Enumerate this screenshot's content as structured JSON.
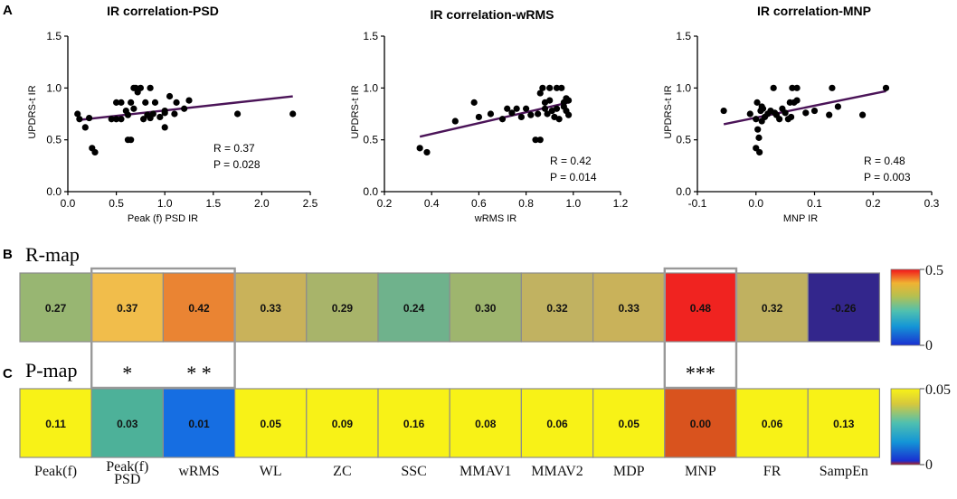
{
  "chart_data": [
    {
      "type": "scatter",
      "panel": "A",
      "title": "IR correlation-PSD",
      "xlabel": "Peak (f) PSD  IR",
      "ylabel": "UPDRS-t IR",
      "xlim": [
        0,
        2.5
      ],
      "ylim": [
        0,
        1.5
      ],
      "xticks": [
        "0.0",
        "0.5",
        "1.0",
        "1.5",
        "2.0",
        "2.5"
      ],
      "yticks": [
        "0.0",
        "0.5",
        "1.0",
        "1.5"
      ],
      "x": [
        0.1,
        0.12,
        0.18,
        0.22,
        0.25,
        0.28,
        0.45,
        0.5,
        0.5,
        0.55,
        0.55,
        0.6,
        0.62,
        0.62,
        0.65,
        0.65,
        0.68,
        0.68,
        0.7,
        0.72,
        0.75,
        0.78,
        0.8,
        0.82,
        0.85,
        0.85,
        0.88,
        0.9,
        0.95,
        1.0,
        1.0,
        1.0,
        1.05,
        1.1,
        1.12,
        1.2,
        1.25,
        1.75,
        2.32
      ],
      "y": [
        0.75,
        0.7,
        0.62,
        0.71,
        0.42,
        0.38,
        0.7,
        0.7,
        0.86,
        0.86,
        0.7,
        0.78,
        0.74,
        0.5,
        0.5,
        0.86,
        0.8,
        1.0,
        1.0,
        0.96,
        1.0,
        0.7,
        0.86,
        0.74,
        1.0,
        0.71,
        0.75,
        0.86,
        0.72,
        0.78,
        0.76,
        0.62,
        0.92,
        0.75,
        0.86,
        0.8,
        0.88,
        0.75,
        0.75
      ],
      "fit": {
        "x": [
          0.1,
          2.32
        ],
        "y": [
          0.69,
          0.92
        ]
      },
      "stats": {
        "r": "R = 0.37",
        "p": "P = 0.028"
      }
    },
    {
      "type": "scatter",
      "title": "IR correlation-wRMS",
      "xlabel": "wRMS  IR",
      "ylabel": "UPDRS-t  IR",
      "xlim": [
        0.2,
        1.2
      ],
      "ylim": [
        0,
        1.5
      ],
      "xticks": [
        "0.2",
        "0.4",
        "0.6",
        "0.8",
        "1.0",
        "1.2"
      ],
      "yticks": [
        "0.0",
        "0.5",
        "1.0",
        "1.5"
      ],
      "x": [
        0.35,
        0.38,
        0.5,
        0.58,
        0.6,
        0.65,
        0.7,
        0.72,
        0.74,
        0.76,
        0.78,
        0.8,
        0.82,
        0.84,
        0.85,
        0.86,
        0.86,
        0.87,
        0.88,
        0.88,
        0.89,
        0.9,
        0.9,
        0.91,
        0.92,
        0.93,
        0.93,
        0.94,
        0.95,
        0.96,
        0.96,
        0.97,
        0.97,
        0.98,
        0.98
      ],
      "y": [
        0.42,
        0.38,
        0.68,
        0.86,
        0.72,
        0.75,
        0.7,
        0.8,
        0.76,
        0.8,
        0.72,
        0.8,
        0.74,
        0.5,
        0.75,
        0.95,
        0.5,
        1.0,
        0.8,
        0.86,
        0.75,
        1.0,
        0.88,
        0.78,
        0.72,
        1.0,
        0.8,
        0.7,
        1.0,
        0.82,
        0.86,
        0.9,
        0.78,
        0.74,
        0.88
      ],
      "fit": {
        "x": [
          0.35,
          0.98
        ],
        "y": [
          0.53,
          0.86
        ]
      },
      "stats": {
        "r": "R = 0.42",
        "p": "P = 0.014"
      }
    },
    {
      "type": "scatter",
      "title": "IR correlation-MNP",
      "xlabel": "MNP IR",
      "ylabel": "UPDRS-t IR",
      "xlim": [
        -0.1,
        0.3
      ],
      "ylim": [
        0,
        1.5
      ],
      "xticks": [
        "-0.1",
        "0.0",
        "0.1",
        "0.2",
        "0.3"
      ],
      "yticks": [
        "0.0",
        "0.5",
        "1.0",
        "1.5"
      ],
      "x": [
        -0.055,
        -0.01,
        0.0,
        0.0,
        0.002,
        0.003,
        0.005,
        0.006,
        0.008,
        0.01,
        0.01,
        0.012,
        0.015,
        0.02,
        0.025,
        0.03,
        0.032,
        0.035,
        0.04,
        0.045,
        0.05,
        0.055,
        0.058,
        0.06,
        0.062,
        0.065,
        0.07,
        0.07,
        0.085,
        0.1,
        0.125,
        0.13,
        0.14,
        0.182,
        0.222
      ],
      "y": [
        0.78,
        0.75,
        0.42,
        0.7,
        0.86,
        0.6,
        0.52,
        0.38,
        0.78,
        0.82,
        0.68,
        0.8,
        0.72,
        0.75,
        0.78,
        1.0,
        0.76,
        0.74,
        0.7,
        0.8,
        0.76,
        0.7,
        0.86,
        0.72,
        1.0,
        0.86,
        0.88,
        1.0,
        0.76,
        0.78,
        0.74,
        1.0,
        0.82,
        0.74,
        1.0
      ],
      "fit": {
        "x": [
          -0.055,
          0.222
        ],
        "y": [
          0.65,
          0.97
        ]
      },
      "stats": {
        "r": "R = 0.48",
        "p": "P = 0.003"
      }
    },
    {
      "type": "heatmap",
      "panel": "B",
      "title": "R-map",
      "categories": [
        "Peak(f)",
        "Peak(f) PSD",
        "wRMS",
        "WL",
        "ZC",
        "SSC",
        "MMAV1",
        "MMAV2",
        "MDP",
        "MNP",
        "FR",
        "SampEn"
      ],
      "values": [
        0.27,
        0.37,
        0.42,
        0.33,
        0.29,
        0.24,
        0.3,
        0.32,
        0.33,
        0.48,
        0.32,
        -0.26
      ],
      "labels": [
        "0.27",
        "0.37",
        "0.42",
        "0.33",
        "0.29",
        "0.24",
        "0.30",
        "0.32",
        "0.33",
        "0.48",
        "0.32",
        "-0.26"
      ],
      "colorbar": {
        "min": 0,
        "max": 0.5,
        "min_label": "0",
        "max_label": "0.5"
      }
    },
    {
      "type": "heatmap",
      "panel": "C",
      "title": "P-map",
      "categories": [
        "Peak(f)",
        "Peak(f) PSD",
        "wRMS",
        "WL",
        "ZC",
        "SSC",
        "MMAV1",
        "MMAV2",
        "MDP",
        "MNP",
        "FR",
        "SampEn"
      ],
      "values": [
        0.11,
        0.03,
        0.01,
        0.05,
        0.09,
        0.16,
        0.08,
        0.06,
        0.05,
        0.0,
        0.06,
        0.13
      ],
      "labels": [
        "0.11",
        "0.03",
        "0.01",
        "0.05",
        "0.09",
        "0.16",
        "0.08",
        "0.06",
        "0.05",
        "0.00",
        "0.06",
        "0.13"
      ],
      "significance": [
        "",
        "*",
        "* *",
        "",
        "",
        "",
        "",
        "",
        "",
        "***",
        "",
        ""
      ],
      "colorbar": {
        "min": 0,
        "max": 0.05,
        "min_label": "0",
        "max_label": "0.05"
      }
    }
  ],
  "panel_letters": {
    "a": "A",
    "b": "B",
    "c": "C"
  },
  "feature_labels": [
    "Peak(f)",
    "Peak(f)\nPSD",
    "wRMS",
    "WL",
    "ZC",
    "SSC",
    "MMAV1",
    "MMAV2",
    "MDP",
    "MNP",
    "FR",
    "SampEn"
  ],
  "colors": {
    "fit_line": "#4b1458",
    "point": "#000000",
    "cell_border": "#8c8c8c",
    "highlight_border": "#999999",
    "r_cells": [
      "#98b672",
      "#f1bd4b",
      "#ea8433",
      "#c9b25a",
      "#a8b46a",
      "#6fb28c",
      "#9eb56e",
      "#c1b261",
      "#c9b25a",
      "#f02320",
      "#c0b160",
      "#33268c"
    ],
    "p_cells": [
      "#f8f217",
      "#4db199",
      "#166ee2",
      "#f8f217",
      "#f8f217",
      "#f8f217",
      "#f8f217",
      "#f8f217",
      "#f8f217",
      "#d9531e",
      "#f8f217",
      "#f8f217"
    ]
  }
}
